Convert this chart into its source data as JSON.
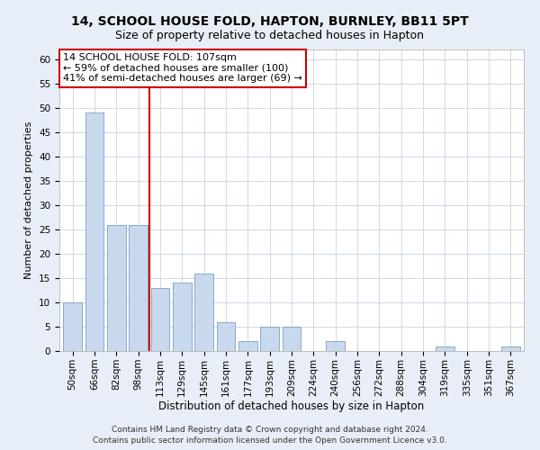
{
  "title1": "14, SCHOOL HOUSE FOLD, HAPTON, BURNLEY, BB11 5PT",
  "title2": "Size of property relative to detached houses in Hapton",
  "xlabel": "Distribution of detached houses by size in Hapton",
  "ylabel": "Number of detached properties",
  "categories": [
    "50sqm",
    "66sqm",
    "82sqm",
    "98sqm",
    "113sqm",
    "129sqm",
    "145sqm",
    "161sqm",
    "177sqm",
    "193sqm",
    "209sqm",
    "224sqm",
    "240sqm",
    "256sqm",
    "272sqm",
    "288sqm",
    "304sqm",
    "319sqm",
    "335sqm",
    "351sqm",
    "367sqm"
  ],
  "values": [
    10,
    49,
    26,
    26,
    13,
    14,
    16,
    6,
    2,
    5,
    5,
    0,
    2,
    0,
    0,
    0,
    0,
    1,
    0,
    0,
    1
  ],
  "bar_color": "#c9d9ed",
  "bar_edge_color": "#7a9fc4",
  "vline_x": 3.5,
  "vline_color": "#cc0000",
  "annotation_line1": "14 SCHOOL HOUSE FOLD: 107sqm",
  "annotation_line2": "← 59% of detached houses are smaller (100)",
  "annotation_line3": "41% of semi-detached houses are larger (69) →",
  "box_edge_color": "#cc0000",
  "ylim": [
    0,
    62
  ],
  "yticks": [
    0,
    5,
    10,
    15,
    20,
    25,
    30,
    35,
    40,
    45,
    50,
    55,
    60
  ],
  "footer1": "Contains HM Land Registry data © Crown copyright and database right 2024.",
  "footer2": "Contains public sector information licensed under the Open Government Licence v3.0.",
  "background_color": "#e8eef7",
  "plot_bg_color": "#ffffff",
  "grid_color": "#c8d4e4",
  "title1_fontsize": 10,
  "title2_fontsize": 9,
  "xlabel_fontsize": 8.5,
  "ylabel_fontsize": 8,
  "tick_fontsize": 7.5,
  "annotation_fontsize": 8,
  "footer_fontsize": 6.5
}
